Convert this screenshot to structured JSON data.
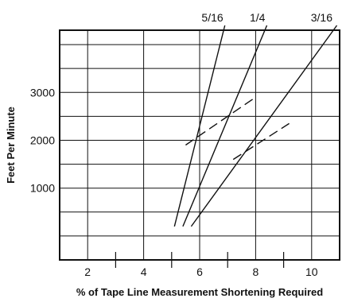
{
  "chart_data": {
    "type": "line",
    "title": "",
    "xlabel": "% of Tape Line Measurement Shortening Required",
    "ylabel": "Feet Per Minute",
    "xlim": [
      1,
      11
    ],
    "ylim": [
      -500,
      4300
    ],
    "x_tick_labels": [
      "2",
      "4",
      "6",
      "8",
      "10"
    ],
    "x_tick_values": [
      2,
      4,
      6,
      8,
      10
    ],
    "x_minor_tick_values": [
      3,
      5,
      7,
      9
    ],
    "y_tick_labels": [
      "1000",
      "2000",
      "3000"
    ],
    "y_tick_values": [
      1000,
      2000,
      3000
    ],
    "grid": true,
    "grid_x": [
      2,
      4,
      6,
      8,
      10
    ],
    "grid_y": [
      0,
      500,
      1000,
      1500,
      2000,
      2500,
      3000,
      3500,
      4000
    ],
    "series": [
      {
        "name": "5/16",
        "style": "solid",
        "points": [
          [
            5.1,
            200
          ],
          [
            6.9,
            4400
          ]
        ]
      },
      {
        "name": "1/4",
        "style": "solid",
        "points": [
          [
            5.4,
            200
          ],
          [
            8.4,
            4400
          ]
        ]
      },
      {
        "name": "3/16",
        "style": "solid",
        "points": [
          [
            5.7,
            200
          ],
          [
            10.9,
            4400
          ]
        ]
      },
      {
        "name": "",
        "style": "dashed",
        "points": [
          [
            5.5,
            1900
          ],
          [
            8.0,
            2900
          ]
        ]
      },
      {
        "name": "",
        "style": "dashed",
        "points": [
          [
            7.2,
            1600
          ],
          [
            9.2,
            2350
          ]
        ]
      }
    ],
    "series_labels": [
      {
        "text": "5/16",
        "anchor_x": 6.9
      },
      {
        "text": "1/4",
        "anchor_x": 8.4
      },
      {
        "text": "3/16",
        "anchor_x": 10.9
      }
    ],
    "colors": {
      "line": "#111111",
      "grid": "#111111",
      "background": "#ffffff"
    }
  }
}
